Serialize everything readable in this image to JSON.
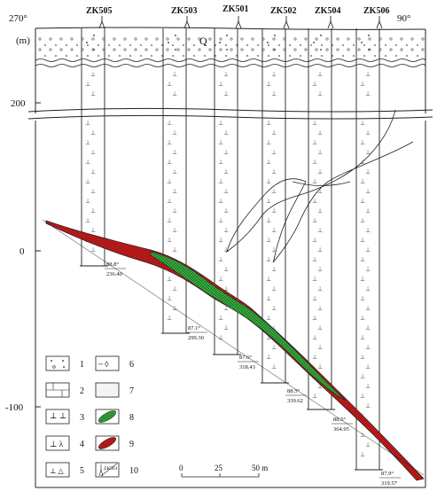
{
  "orientation": {
    "left": "270°",
    "right": "90°"
  },
  "axis": {
    "unit": "(m)",
    "ticks": [
      "200",
      "0",
      "-100"
    ]
  },
  "boreholes": [
    {
      "id": "ZK505",
      "angle": "88.8°",
      "depth": "236.40"
    },
    {
      "id": "ZK503",
      "angle": "87.1°",
      "depth": "299.30"
    },
    {
      "id": "ZK501",
      "angle": "87.6°",
      "depth": "318.43"
    },
    {
      "id": "ZK502",
      "angle": "88.5°",
      "depth": "339.62"
    },
    {
      "id": "ZK504",
      "angle": "88.5°",
      "depth": "364.95"
    },
    {
      "id": "ZK506",
      "angle": "87.9°",
      "depth": "319.57"
    }
  ],
  "unit_label": "Q",
  "scale_bar": {
    "labels": [
      "0",
      "25",
      "50 m"
    ]
  },
  "legend": {
    "items": [
      {
        "num": "1"
      },
      {
        "num": "2"
      },
      {
        "num": "3"
      },
      {
        "num": "4"
      },
      {
        "num": "5"
      },
      {
        "num": "6"
      },
      {
        "num": "7"
      },
      {
        "num": "8"
      },
      {
        "num": "9"
      },
      {
        "num": "10",
        "sample": "ZK501"
      }
    ]
  },
  "colors": {
    "orebody_green": "#3cb043",
    "orebody_red": "#d42020",
    "line": "#222222"
  }
}
